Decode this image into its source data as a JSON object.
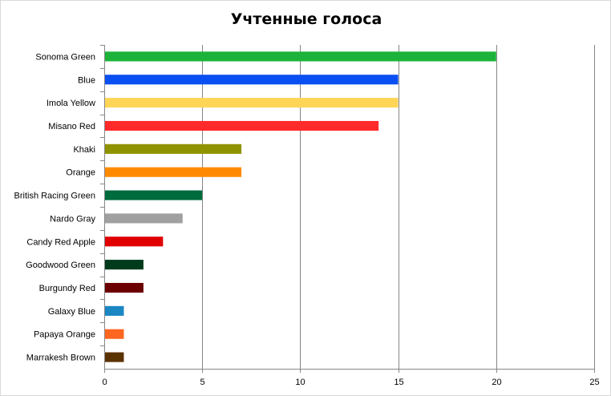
{
  "chart_data": {
    "type": "bar",
    "orientation": "horizontal",
    "title": "Учтенные голоса",
    "xlabel": "",
    "ylabel": "",
    "xlim": [
      0,
      25
    ],
    "xticks": [
      0,
      5,
      10,
      15,
      20,
      25
    ],
    "grid": true,
    "legend": "none",
    "categories": [
      "Sonoma Green",
      "Blue",
      "Imola Yellow",
      "Misano Red",
      "Khaki",
      "Orange",
      "British Racing Green",
      "Nardo Gray",
      "Candy Red Apple",
      "Goodwood Green",
      "Burgundy Red",
      "Galaxy Blue",
      "Papaya Orange",
      "Marrakesh Brown"
    ],
    "values": [
      20,
      15,
      15,
      14,
      7,
      7,
      5,
      4,
      3,
      2,
      2,
      1,
      1,
      1
    ],
    "colors": [
      "#1db33a",
      "#0a4ff2",
      "#ffd556",
      "#ff2a2a",
      "#8f9300",
      "#ff8a00",
      "#006b3c",
      "#a0a0a0",
      "#e00000",
      "#003b1c",
      "#6b0000",
      "#1a86c2",
      "#ff6620",
      "#5a3200"
    ]
  }
}
